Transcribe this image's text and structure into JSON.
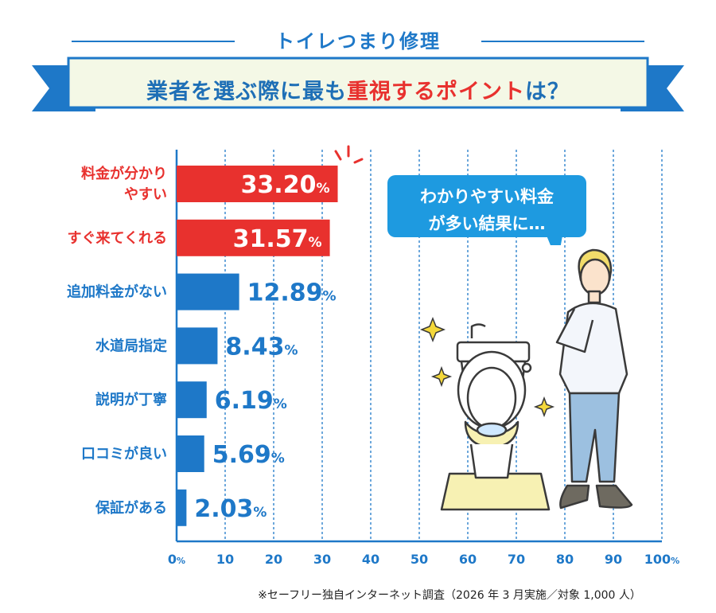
{
  "header": {
    "title": "トイレつまり修理"
  },
  "banner": {
    "text_part1": "業者を選ぶ際に最も",
    "text_em": "重視するポイント",
    "text_part2": "は？"
  },
  "bubble": {
    "line1": "わかりやすい料金",
    "line2": "が多い結果に…"
  },
  "footnote": "※セーフリー独自インターネット調査（2026 年 3 月実施／対象 1,000 人）",
  "colors": {
    "highlight": "#e8312e",
    "primary": "#1e78c8"
  },
  "chart_data": {
    "type": "bar",
    "orientation": "horizontal",
    "categories": [
      [
        "料金が分かり",
        "やすい"
      ],
      [
        "すぐ来てくれる"
      ],
      [
        "追加料金がない"
      ],
      [
        "水道局指定"
      ],
      [
        "説明が丁寧"
      ],
      [
        "口コミが良い"
      ],
      [
        "保証がある"
      ]
    ],
    "values": [
      33.2,
      31.57,
      12.89,
      8.43,
      6.19,
      5.69,
      2.03
    ],
    "value_labels": [
      "33.20",
      "31.57",
      "12.89",
      "8.43",
      "6.19",
      "5.69",
      "2.03"
    ],
    "highlighted": [
      true,
      true,
      false,
      false,
      false,
      false,
      false
    ],
    "unit": "%",
    "xlim": [
      0,
      100
    ],
    "xticks": [
      "0",
      "10",
      "20",
      "30",
      "40",
      "50",
      "60",
      "70",
      "80",
      "90",
      "100"
    ],
    "grid": true
  }
}
